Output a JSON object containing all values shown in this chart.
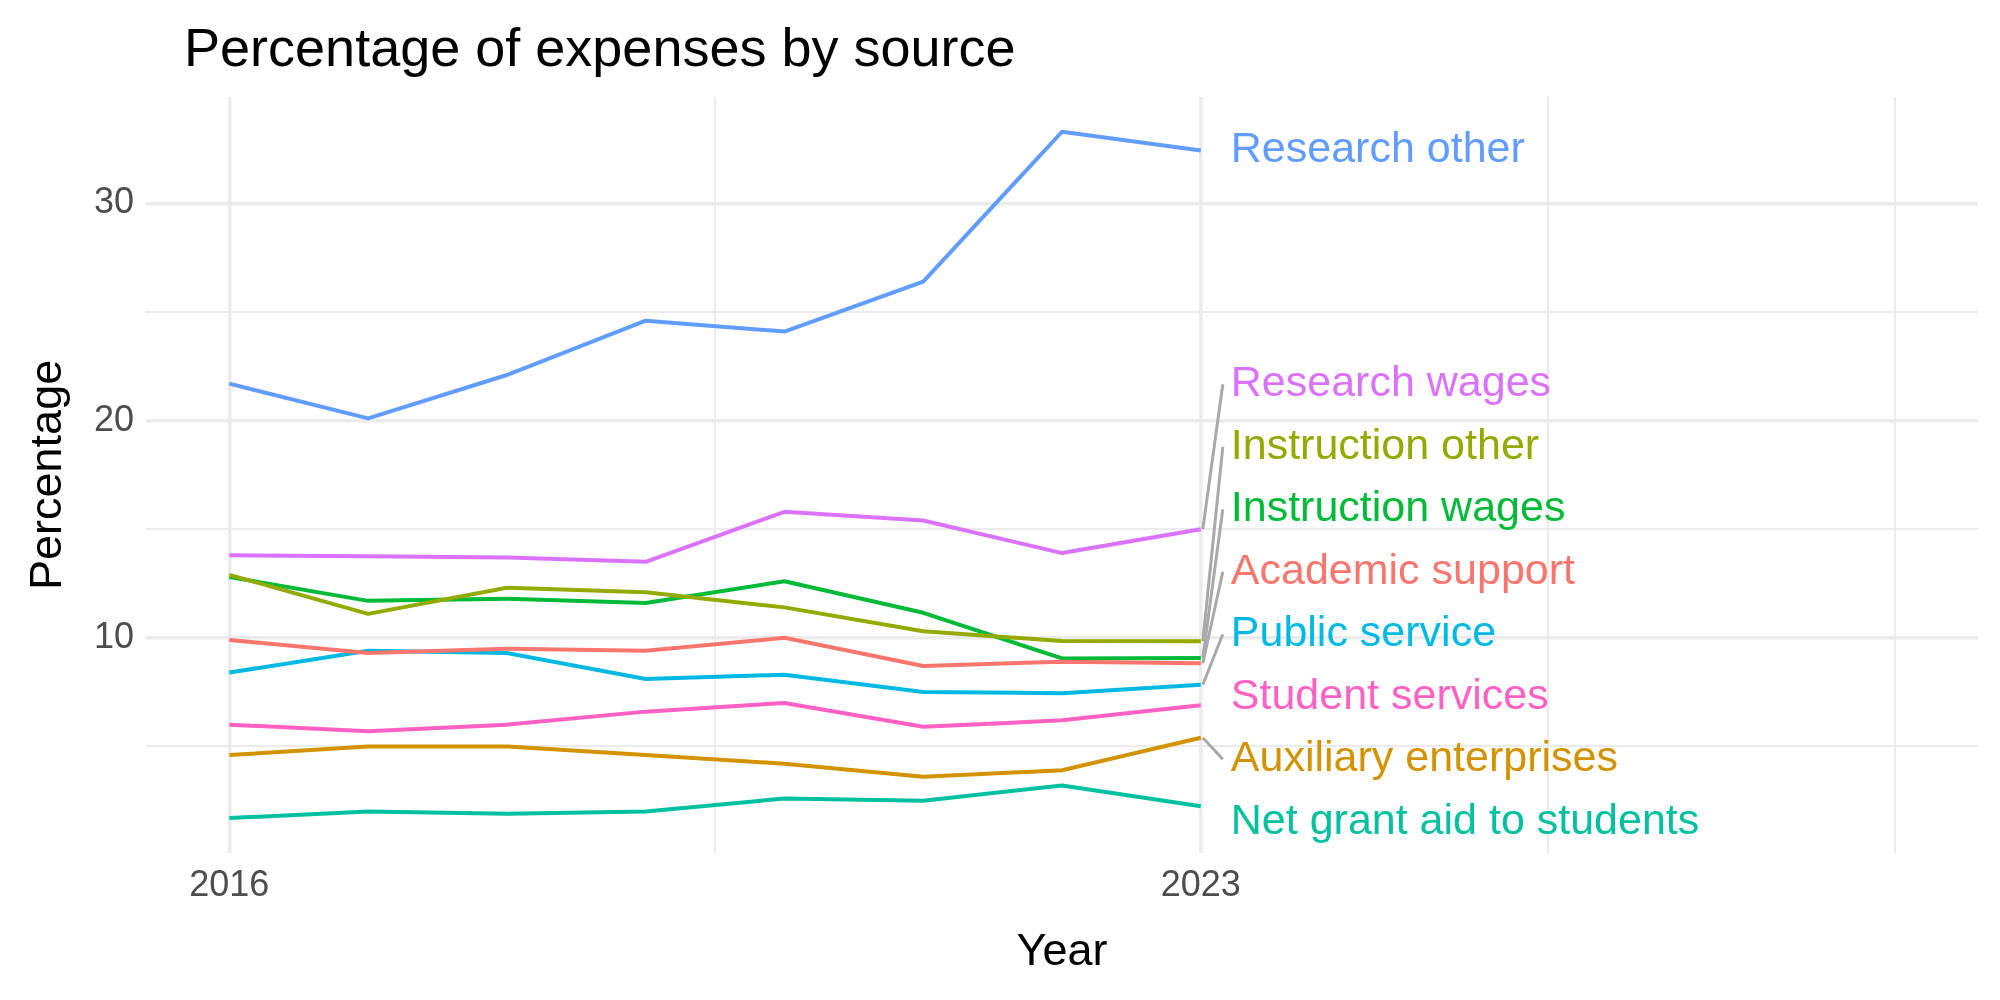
{
  "chart_data": {
    "type": "line",
    "title": "Percentage of expenses by source",
    "xlabel": "Year",
    "ylabel": "Percentage",
    "x": [
      2016,
      2017,
      2018,
      2019,
      2020,
      2021,
      2022,
      2023
    ],
    "series": [
      {
        "name": "Academic support",
        "color": "#f8766d",
        "values": [
          9.9,
          9.3,
          9.5,
          9.4,
          10.0,
          8.7,
          8.9,
          8.83
        ]
      },
      {
        "name": "Auxiliary enterprises",
        "color": "#d39200",
        "values": [
          4.6,
          5.0,
          5.0,
          4.6,
          4.2,
          3.6,
          3.9,
          5.4
        ]
      },
      {
        "name": "Instruction other",
        "color": "#93aa00",
        "values": [
          12.9,
          11.1,
          12.3,
          12.1,
          11.4,
          10.3,
          9.85,
          9.84
        ]
      },
      {
        "name": "Instruction wages",
        "color": "#00ba38",
        "values": [
          12.8,
          11.7,
          11.8,
          11.6,
          12.6,
          11.15,
          9.05,
          9.07
        ]
      },
      {
        "name": "Net grant aid to students",
        "color": "#00c19f",
        "values": [
          1.7,
          2.0,
          1.9,
          2.0,
          2.6,
          2.5,
          3.2,
          2.24
        ]
      },
      {
        "name": "Public service",
        "color": "#00b9e3",
        "values": [
          8.4,
          9.4,
          9.3,
          8.1,
          8.3,
          7.5,
          7.45,
          7.84
        ]
      },
      {
        "name": "Research other",
        "color": "#619cff",
        "values": [
          21.7,
          20.1,
          22.1,
          24.6,
          24.1,
          26.4,
          33.3,
          32.44
        ]
      },
      {
        "name": "Research wages",
        "color": "#db72fb",
        "values": [
          13.8,
          13.75,
          13.7,
          13.5,
          15.8,
          15.4,
          13.9,
          15.0
        ]
      },
      {
        "name": "Student services",
        "color": "#ff61c3",
        "values": [
          6.0,
          5.7,
          6.0,
          6.6,
          7.0,
          5.9,
          6.2,
          6.89
        ]
      }
    ],
    "xlim": [
      2015.4,
      2028.6
    ],
    "ylim": [
      0.1,
      34.9
    ],
    "xticks": [
      2016,
      {
        "value": 2019.5,
        "label": null
      },
      2023,
      {
        "value": 2025.5,
        "label": null
      },
      {
        "value": 2028,
        "label": null
      }
    ],
    "yticks": [
      {
        "value": 5,
        "label": null
      },
      10,
      {
        "value": 15,
        "label": null
      },
      20,
      {
        "value": 25,
        "label": null
      },
      30
    ],
    "grid": true
  }
}
